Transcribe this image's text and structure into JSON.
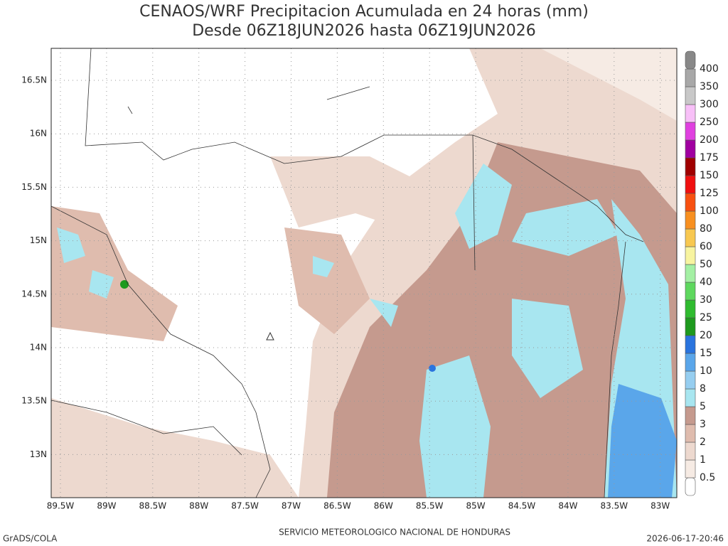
{
  "title": [
    "CENAOS/WRF Precipitacion Acumulada en 24 horas (mm)",
    "Desde 06Z18JUN2026 hasta 06Z19JUN2026"
  ],
  "lat_labels": [
    "16.5N",
    "16N",
    "15.5N",
    "15N",
    "14.5N",
    "14N",
    "13.5N",
    "13N"
  ],
  "lon_labels": [
    "89.5W",
    "89W",
    "88.5W",
    "88W",
    "87.5W",
    "87W",
    "86.5W",
    "86W",
    "85.5W",
    "85W",
    "84.5W",
    "84W",
    "83.5W",
    "83W"
  ],
  "legend": {
    "labels": [
      "0.5",
      "1",
      "2",
      "3",
      "5",
      "8",
      "10",
      "15",
      "20",
      "25",
      "30",
      "40",
      "50",
      "60",
      "80",
      "100",
      "125",
      "150",
      "175",
      "200",
      "250",
      "300",
      "350",
      "400"
    ],
    "colors": [
      "#ffffff",
      "#f6ebe4",
      "#edd9cf",
      "#dfbcae",
      "#c59a8e",
      "#a8e6f0",
      "#96cef0",
      "#5aa6ea",
      "#2a74de",
      "#1e9a1e",
      "#2fbb2f",
      "#5ed85e",
      "#a4f0a4",
      "#f8f4a0",
      "#f8c850",
      "#f89020",
      "#f85010",
      "#f01010",
      "#a00000",
      "#a000a0",
      "#e040e0",
      "#f8c0f8",
      "#c8c8c8",
      "#a8a8a8",
      "#888888"
    ]
  },
  "footer": {
    "left": "GrADS/COLA",
    "center": "SERVICIO METEOROLOGICO NACIONAL DE HONDURAS",
    "right": "2026-06-17-20:46"
  }
}
